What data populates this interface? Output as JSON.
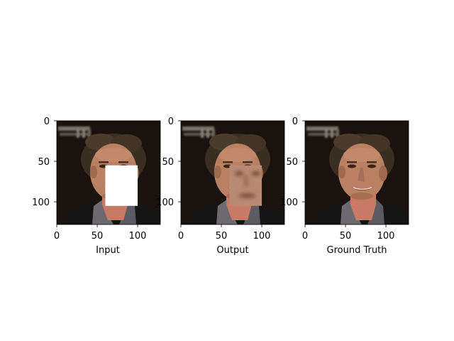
{
  "chart_data": [
    {
      "type": "image",
      "xlabel": "Input",
      "ylabel": "",
      "xlim": [
        0,
        128
      ],
      "ylim": [
        128,
        0
      ],
      "xticks": [
        0,
        50,
        100
      ],
      "yticks": [
        0,
        50,
        100
      ],
      "mask": {
        "x": [
          60,
          100
        ],
        "y": [
          55,
          105
        ],
        "fill": "#ffffff"
      }
    },
    {
      "type": "image",
      "xlabel": "Output",
      "ylabel": "",
      "xlim": [
        0,
        128
      ],
      "ylim": [
        128,
        0
      ],
      "xticks": [
        0,
        50,
        100
      ],
      "yticks": [
        0,
        50,
        100
      ],
      "inpainted_region": {
        "x": [
          60,
          100
        ],
        "y": [
          55,
          105
        ]
      }
    },
    {
      "type": "image",
      "xlabel": "Ground Truth",
      "ylabel": "",
      "xlim": [
        0,
        128
      ],
      "ylim": [
        128,
        0
      ],
      "xticks": [
        0,
        50,
        100
      ],
      "yticks": [
        0,
        50,
        100
      ]
    }
  ],
  "colors": {
    "background": "#1a120c",
    "hair": "#3a2e22",
    "skin": "#b98062",
    "skin_dark": "#8a5a42",
    "jacket": "#141414",
    "shirt": "#6c6a70",
    "neck": "#c77a66",
    "blur_patch": "#b98a72",
    "mask": "#ffffff"
  }
}
